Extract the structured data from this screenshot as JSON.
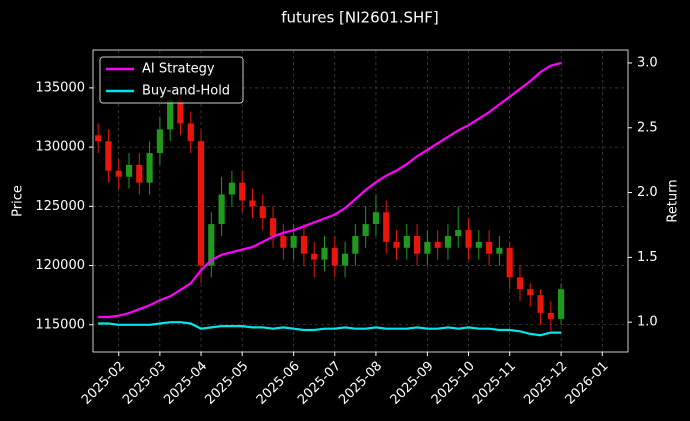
{
  "chart_data": {
    "type": "candlestick",
    "title": "futures [NI2601.SHF]",
    "ylabel": "Price",
    "y2label": "Return",
    "categories": [
      null,
      null,
      "2025-02",
      null,
      null,
      null,
      "2025-03",
      null,
      null,
      null,
      "2025-04",
      null,
      null,
      null,
      "2025-05",
      null,
      null,
      null,
      null,
      "2025-06",
      null,
      null,
      null,
      "2025-07",
      null,
      null,
      null,
      "2025-08",
      null,
      null,
      null,
      null,
      "2025-09",
      null,
      null,
      null,
      "2025-10",
      null,
      null,
      null,
      "2025-11",
      null,
      null,
      null,
      null,
      "2025-12",
      null,
      null,
      null,
      "2026-01",
      null,
      null
    ],
    "ohlc": {
      "open": [
        131000,
        130500,
        128000,
        127500,
        128500,
        127000,
        129500,
        131500,
        134000,
        132000,
        130500,
        120000,
        123500,
        126000,
        127000,
        125500,
        125000,
        124000,
        122500,
        121500,
        122500,
        121000,
        120500,
        121500,
        120000,
        121000,
        122500,
        123500,
        124500,
        122000,
        121500,
        122500,
        121000,
        122000,
        121500,
        122500,
        123000,
        121500,
        122000,
        121000,
        121500,
        119000,
        118000,
        117500,
        116000,
        115500,
        null,
        null,
        null,
        null,
        null,
        null
      ],
      "high": [
        132000,
        131500,
        129000,
        129500,
        129500,
        130500,
        132500,
        135000,
        135000,
        133000,
        131500,
        124500,
        127500,
        128000,
        128000,
        126500,
        126000,
        125000,
        123500,
        123500,
        123500,
        122000,
        122500,
        122500,
        122000,
        123500,
        125000,
        126000,
        125500,
        123000,
        123500,
        123500,
        123000,
        123000,
        123500,
        125000,
        124000,
        123000,
        123000,
        122500,
        122000,
        120000,
        118500,
        118000,
        117000,
        118500,
        null,
        null,
        null,
        null,
        null,
        null
      ],
      "low": [
        129500,
        127000,
        126500,
        126500,
        126000,
        126000,
        128500,
        130500,
        131000,
        129500,
        118500,
        119000,
        122500,
        125000,
        124500,
        124000,
        123000,
        121500,
        120500,
        120500,
        120000,
        119000,
        119500,
        119000,
        119000,
        120000,
        121500,
        122500,
        121000,
        120500,
        120500,
        120000,
        120000,
        120500,
        120500,
        121500,
        120500,
        120500,
        120000,
        120000,
        118000,
        117000,
        116500,
        115000,
        114500,
        115000,
        null,
        null,
        null,
        null,
        null,
        null
      ],
      "close": [
        130500,
        128000,
        127500,
        128500,
        127000,
        129500,
        131500,
        134000,
        132000,
        130500,
        120000,
        123500,
        126000,
        127000,
        125500,
        125000,
        124000,
        122500,
        121500,
        122500,
        121000,
        120500,
        121500,
        120000,
        121000,
        122500,
        123500,
        124500,
        122000,
        121500,
        122500,
        121000,
        122000,
        121500,
        122500,
        123000,
        121500,
        122000,
        121000,
        121500,
        119000,
        118000,
        117500,
        116000,
        115500,
        118000,
        null,
        null,
        null,
        null,
        null,
        null
      ]
    },
    "up_color": "#1f9a1f",
    "down_color": "#e8160c",
    "series": [
      {
        "name": "AI Strategy",
        "color": "#ff00ff",
        "axis": "y2",
        "values": [
          1.04,
          1.04,
          1.05,
          1.07,
          1.1,
          1.13,
          1.17,
          1.2,
          1.25,
          1.3,
          1.4,
          1.48,
          1.52,
          1.54,
          1.56,
          1.58,
          1.62,
          1.66,
          1.69,
          1.71,
          1.74,
          1.77,
          1.8,
          1.83,
          1.88,
          1.95,
          2.02,
          2.08,
          2.13,
          2.17,
          2.22,
          2.28,
          2.33,
          2.38,
          2.43,
          2.48,
          2.52,
          2.57,
          2.62,
          2.68,
          2.74,
          2.8,
          2.86,
          2.93,
          2.98,
          3.0,
          null,
          null,
          null,
          null,
          null,
          null
        ]
      },
      {
        "name": "Buy-and-Hold",
        "color": "#00e5e5",
        "axis": "y2",
        "values": [
          0.99,
          0.99,
          0.98,
          0.98,
          0.98,
          0.98,
          0.99,
          1.0,
          1.0,
          0.99,
          0.95,
          0.96,
          0.97,
          0.97,
          0.97,
          0.96,
          0.96,
          0.95,
          0.96,
          0.95,
          0.94,
          0.94,
          0.95,
          0.95,
          0.96,
          0.95,
          0.95,
          0.96,
          0.95,
          0.95,
          0.95,
          0.96,
          0.95,
          0.95,
          0.96,
          0.95,
          0.96,
          0.95,
          0.95,
          0.94,
          0.94,
          0.93,
          0.91,
          0.9,
          0.92,
          0.92,
          null,
          null,
          null,
          null,
          null,
          null
        ]
      }
    ],
    "ylim": [
      112700,
      138200
    ],
    "yticks": [
      115000,
      120000,
      125000,
      130000,
      135000
    ],
    "y2lim": [
      0.77,
      3.1
    ],
    "y2ticks": [
      {
        "value": 1,
        "label": "1.0"
      },
      1.5,
      {
        "value": 2,
        "label": "2.0"
      },
      2.5,
      {
        "value": 3,
        "label": "3.0"
      }
    ],
    "grid": true,
    "legend": "upper left"
  }
}
